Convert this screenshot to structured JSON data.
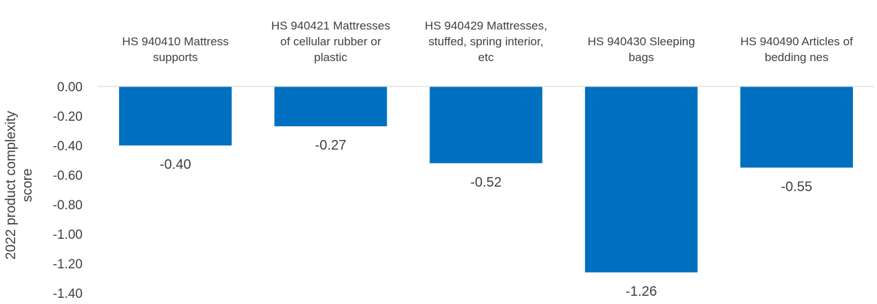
{
  "chart_data": {
    "type": "bar",
    "title": "",
    "xlabel": "",
    "ylabel": "2022 product complexity score",
    "ylim": [
      -1.4,
      0
    ],
    "yticks": [
      "0.00",
      "-0.20",
      "-0.40",
      "-0.60",
      "-0.80",
      "-1.00",
      "-1.20",
      "-1.40"
    ],
    "categories": [
      "HS 940410 Mattress supports",
      "HS 940421 Mattresses of cellular rubber or plastic",
      "HS 940429 Mattresses, stuffed, spring interior, etc",
      "HS 940430 Sleeping bags",
      "HS 940490 Articles of bedding nes"
    ],
    "category_lines": [
      [
        "HS 940410 Mattress",
        "supports"
      ],
      [
        "HS 940421 Mattresses",
        "of cellular rubber or",
        "plastic"
      ],
      [
        "HS 940429 Mattresses,",
        "stuffed, spring interior,",
        "etc"
      ],
      [
        "HS 940430 Sleeping",
        "bags"
      ],
      [
        "HS 940490 Articles of",
        "bedding nes"
      ]
    ],
    "values": [
      -0.4,
      -0.27,
      -0.52,
      -1.26,
      -0.55
    ],
    "data_labels": [
      "-0.40",
      "-0.27",
      "-0.52",
      "-1.26",
      "-0.55"
    ],
    "bar_color": "#0070C0",
    "axis_color": "#D9D9D9",
    "text_color": "#404040",
    "grid": false,
    "legend": "none"
  }
}
